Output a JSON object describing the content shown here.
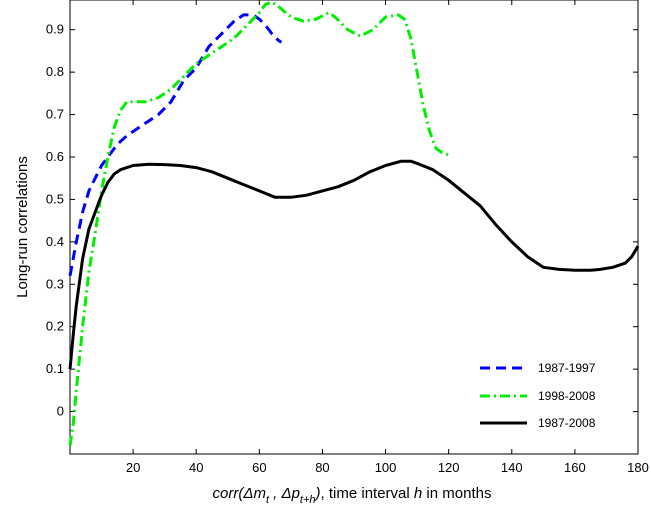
{
  "chart_data": {
    "type": "line",
    "title": "",
    "ylabel": "Long-run correlations",
    "xlabel": {
      "corr": "corr",
      "open": "(",
      "delta1": "Δm",
      "sub1": "t",
      "comma": " , ",
      "delta2": "Δp",
      "sub2": "t+h",
      "close": ")",
      "rest1": ", time interval  ",
      "h": "h",
      "rest2": " in months"
    },
    "xlim": [
      0,
      180
    ],
    "ylim": [
      -0.1,
      0.97
    ],
    "xticks": [
      20,
      40,
      60,
      80,
      100,
      120,
      140,
      160,
      180
    ],
    "yticks": [
      0,
      0.1,
      0.2,
      0.3,
      0.4,
      0.5,
      0.6,
      0.7,
      0.8,
      0.9
    ],
    "ytick_labels": [
      "0",
      "0.1",
      "0.2",
      "0.3",
      "0.4",
      "0.5",
      "0.6",
      "0.7",
      "0.8",
      "0.9"
    ],
    "legend_position": "bottom-right",
    "grid": false,
    "series": [
      {
        "name": "1987-1997",
        "color": "#0000ff",
        "style": "dashed",
        "x": [
          0,
          2,
          4,
          6,
          8,
          10,
          12,
          15,
          18,
          20,
          24,
          28,
          32,
          36,
          40,
          44,
          48,
          52,
          55,
          58,
          60,
          62,
          64,
          66,
          67
        ],
        "y": [
          0.32,
          0.4,
          0.47,
          0.52,
          0.55,
          0.58,
          0.6,
          0.63,
          0.65,
          0.66,
          0.68,
          0.7,
          0.73,
          0.78,
          0.81,
          0.86,
          0.89,
          0.92,
          0.935,
          0.935,
          0.925,
          0.91,
          0.89,
          0.875,
          0.87
        ]
      },
      {
        "name": "1998-2008",
        "color": "#00ee00",
        "style": "dashdot",
        "x": [
          0,
          1,
          2,
          4,
          6,
          8,
          10,
          12,
          14,
          16,
          18,
          20,
          24,
          28,
          32,
          36,
          40,
          44,
          48,
          52,
          56,
          60,
          62,
          64,
          66,
          70,
          74,
          78,
          82,
          84,
          88,
          92,
          96,
          100,
          104,
          106,
          108,
          110,
          112,
          114,
          116,
          118,
          120
        ],
        "y": [
          -0.08,
          -0.03,
          0.05,
          0.2,
          0.33,
          0.42,
          0.52,
          0.6,
          0.67,
          0.71,
          0.73,
          0.73,
          0.73,
          0.74,
          0.76,
          0.79,
          0.82,
          0.84,
          0.86,
          0.88,
          0.91,
          0.94,
          0.96,
          0.965,
          0.955,
          0.93,
          0.92,
          0.925,
          0.94,
          0.93,
          0.9,
          0.885,
          0.9,
          0.93,
          0.935,
          0.925,
          0.88,
          0.8,
          0.72,
          0.66,
          0.62,
          0.61,
          0.605
        ]
      },
      {
        "name": "1987-2008",
        "color": "#000000",
        "style": "solid",
        "x": [
          0,
          1,
          2,
          4,
          6,
          8,
          10,
          12,
          14,
          16,
          18,
          20,
          25,
          30,
          35,
          40,
          45,
          50,
          55,
          60,
          65,
          70,
          75,
          80,
          85,
          90,
          95,
          100,
          105,
          108,
          110,
          115,
          120,
          125,
          130,
          135,
          140,
          145,
          150,
          155,
          160,
          165,
          168,
          172,
          176,
          178,
          180
        ],
        "y": [
          0.1,
          0.18,
          0.25,
          0.36,
          0.43,
          0.47,
          0.51,
          0.54,
          0.56,
          0.57,
          0.575,
          0.58,
          0.583,
          0.582,
          0.58,
          0.575,
          0.565,
          0.55,
          0.535,
          0.52,
          0.505,
          0.505,
          0.51,
          0.52,
          0.53,
          0.545,
          0.565,
          0.58,
          0.59,
          0.59,
          0.585,
          0.57,
          0.545,
          0.515,
          0.485,
          0.44,
          0.4,
          0.365,
          0.34,
          0.335,
          0.333,
          0.333,
          0.335,
          0.34,
          0.35,
          0.365,
          0.39
        ]
      }
    ]
  }
}
